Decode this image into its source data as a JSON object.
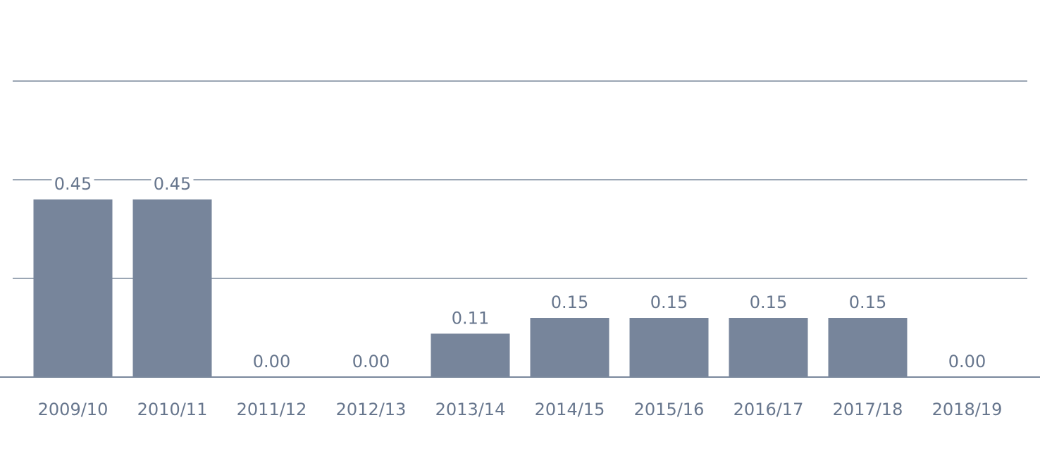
{
  "chart_data": {
    "type": "bar",
    "title": "",
    "xlabel": "",
    "ylabel": "",
    "categories": [
      "2009/10",
      "2010/11",
      "2011/12",
      "2012/13",
      "2013/14",
      "2014/15",
      "2015/16",
      "2016/17",
      "2017/18",
      "2018/19"
    ],
    "values": [
      0.45,
      0.45,
      0.0,
      0.0,
      0.11,
      0.15,
      0.15,
      0.15,
      0.15,
      0.0
    ],
    "value_labels": [
      "0.45",
      "0.45",
      "0.00",
      "0.00",
      "0.11",
      "0.15",
      "0.15",
      "0.15",
      "0.15",
      "0.00"
    ],
    "ylim": [
      0,
      0.75
    ],
    "gridlines": [
      0.25,
      0.5,
      0.75
    ],
    "grid": true,
    "legend": "none",
    "bar_color": "#77859b",
    "grid_color": "#7a889c",
    "text_color": "#67768d"
  }
}
